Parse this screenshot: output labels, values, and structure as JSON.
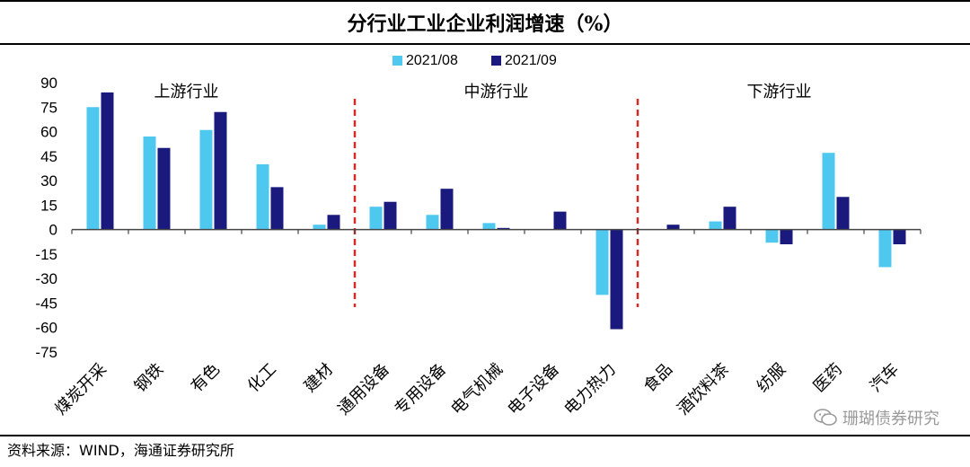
{
  "title": "分行业工业企业利润增速（%）",
  "source": "资料来源：WIND，海通证券研究所",
  "watermark": "珊瑚债券研究",
  "chart_data": {
    "type": "bar",
    "title": "分行业工业企业利润增速（%）",
    "xlabel": "",
    "ylabel": "",
    "ylim": [
      -75,
      90
    ],
    "yticks": [
      90,
      75,
      60,
      45,
      30,
      15,
      0,
      -15,
      -30,
      -45,
      -60,
      -75
    ],
    "legend_position": "top-center",
    "categories": [
      "煤炭开采",
      "钢铁",
      "有色",
      "化工",
      "建材",
      "通用设备",
      "专用设备",
      "电气机械",
      "电子设备",
      "电力热力",
      "食品",
      "酒饮料茶",
      "纺服",
      "医药",
      "汽车"
    ],
    "series": [
      {
        "name": "2021/08",
        "color": "#4fc8f0",
        "values": [
          75,
          57,
          61,
          40,
          3,
          14,
          9,
          4,
          0,
          -40,
          0,
          5,
          -8,
          47,
          -23
        ]
      },
      {
        "name": "2021/09",
        "color": "#1a1a7e",
        "values": [
          84,
          50,
          72,
          26,
          9,
          17,
          25,
          1,
          11,
          -61,
          3,
          14,
          -9,
          20,
          -9
        ]
      }
    ],
    "groups": [
      {
        "label": "上游行业"
      },
      {
        "label": "中游行业"
      },
      {
        "label": "下游行业"
      }
    ],
    "separator_color": "#d42a2a"
  }
}
